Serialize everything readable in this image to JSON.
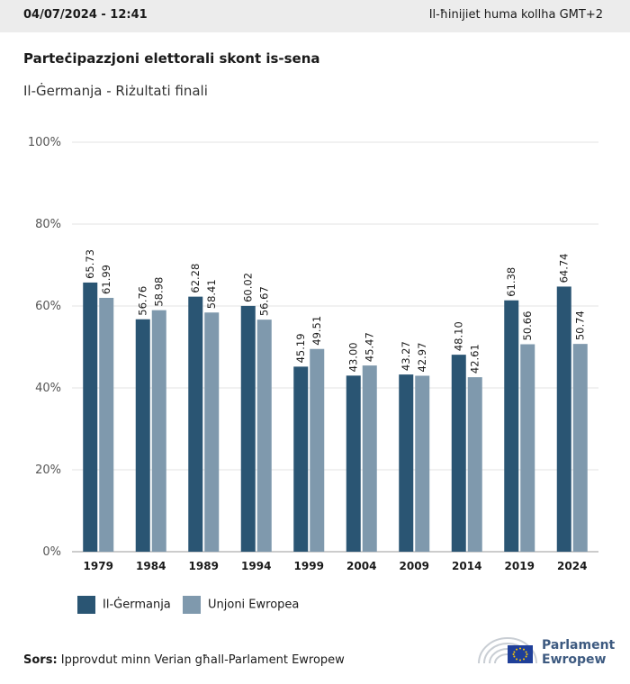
{
  "header": {
    "timestamp": "04/07/2024 - 12:41",
    "timezone": "Il-ħinijiet huma kollha GMT+2"
  },
  "title": "Parteċipazzjoni elettorali skont is-sena",
  "subtitle": "Il-Ġermanja - Riżultati finali",
  "source": {
    "label": "Sors:",
    "text": "Ipprovdut minn Verian għall-Parlament Ewropew"
  },
  "logo": {
    "line1": "Parlament",
    "line2": "Ewropew"
  },
  "colors": {
    "germany": "#2a5573",
    "eu": "#7f99ad",
    "grid": "#e3e3e3"
  },
  "chart_data": {
    "type": "bar",
    "categories": [
      "1979",
      "1984",
      "1989",
      "1994",
      "1999",
      "2004",
      "2009",
      "2014",
      "2019",
      "2024"
    ],
    "series": [
      {
        "name": "Il-Ġermanja",
        "values": [
          65.73,
          56.76,
          62.28,
          60.02,
          45.19,
          43.0,
          43.27,
          48.1,
          61.38,
          64.74
        ]
      },
      {
        "name": "Unjoni Ewropea",
        "values": [
          61.99,
          58.98,
          58.41,
          56.67,
          49.51,
          45.47,
          42.97,
          42.61,
          50.66,
          50.74
        ]
      }
    ],
    "value_labels": [
      [
        "65.73",
        "56.76",
        "62.28",
        "60.02",
        "45.19",
        "43.00",
        "43.27",
        "48.10",
        "61.38",
        "64.74"
      ],
      [
        "61.99",
        "58.98",
        "58.41",
        "56.67",
        "49.51",
        "45.47",
        "42.97",
        "42.61",
        "50.66",
        "50.74"
      ]
    ],
    "yticks": [
      "0%",
      "20%",
      "40%",
      "60%",
      "80%",
      "100%"
    ],
    "ylim": [
      0,
      100
    ],
    "grid": true,
    "legend_position": "bottom-left"
  }
}
